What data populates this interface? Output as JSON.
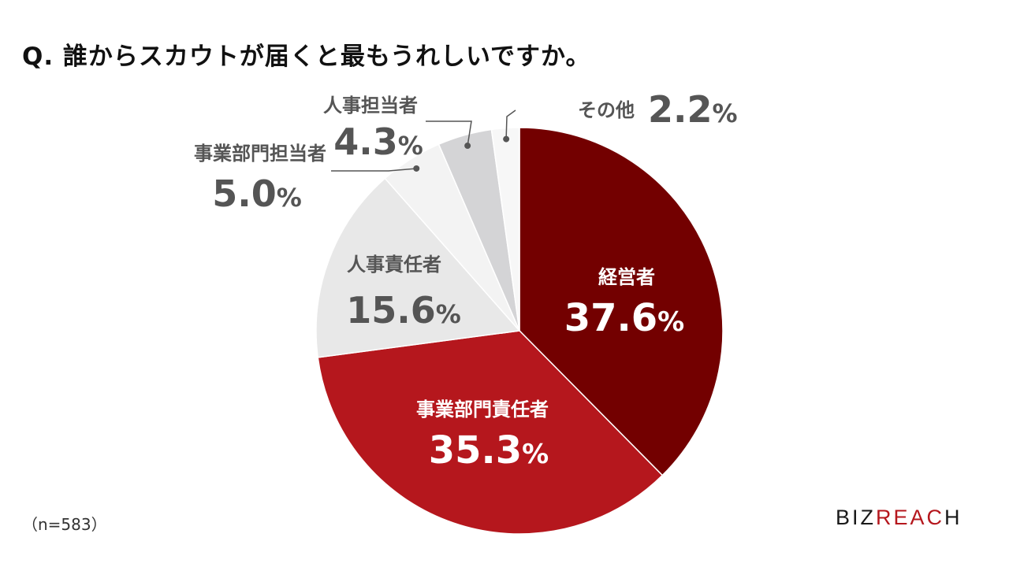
{
  "title": "Q. 誰からスカウトが届くと最もうれしいですか。",
  "note": "（n=583）",
  "logo": {
    "main": "BIZ",
    "accent": "REAC",
    "tail": "H"
  },
  "chart_data": {
    "type": "pie",
    "title": "Q. 誰からスカウトが届くと最もうれしいですか。",
    "unit": "%",
    "slices": [
      {
        "label": "経営者",
        "value": 37.6,
        "display": "37.6",
        "color": "#730000",
        "text_color": "#ffffff"
      },
      {
        "label": "事業部門責任者",
        "value": 35.3,
        "display": "35.3",
        "color": "#b5171d",
        "text_color": "#ffffff"
      },
      {
        "label": "人事責任者",
        "value": 15.6,
        "display": "15.6",
        "color": "#e8e8e8",
        "text_color": "#555555"
      },
      {
        "label": "事業部門担当者",
        "value": 5.0,
        "display": "5.0",
        "color": "#f3f3f3",
        "text_color": "#555555"
      },
      {
        "label": "人事担当者",
        "value": 4.3,
        "display": "4.3",
        "color": "#d4d4d6",
        "text_color": "#555555"
      },
      {
        "label": "その他",
        "value": 2.2,
        "display": "2.2",
        "color": "#f7f7f7",
        "text_color": "#555555"
      }
    ]
  }
}
